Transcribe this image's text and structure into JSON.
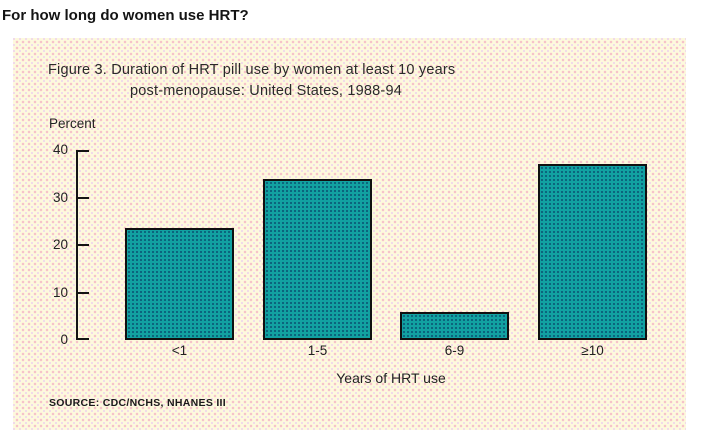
{
  "page": {
    "heading": "For how long do women use HRT?"
  },
  "figure": {
    "title_line1": "Figure 3. Duration of HRT pill use by women at least 10 years",
    "title_line2": "post-menopause: United States, 1988-94",
    "source": "SOURCE: CDC/NCHS, NHANES III"
  },
  "chart_data": {
    "type": "bar",
    "title": "Figure 3. Duration of HRT pill use by women at least 10 years post-menopause: United States, 1988-94",
    "categories": [
      "<1",
      "1-5",
      "6-9",
      "≥10"
    ],
    "values": [
      23.5,
      34,
      6,
      37
    ],
    "xlabel": "Years of HRT use",
    "ylabel": "Percent",
    "ylim": [
      0,
      40
    ],
    "yticks": [
      0,
      10,
      20,
      30,
      40
    ],
    "grid": false,
    "legend": "none",
    "source": "SOURCE: CDC/NCHS, NHANES III"
  },
  "colors": {
    "panel_bg": "#fdf9dd",
    "panel_dot_pink": "#f6c3c9",
    "bar_fill": "#12a1a1",
    "bar_dot": "#0b607a",
    "axis": "#141414",
    "text": "#1c1c1c"
  }
}
